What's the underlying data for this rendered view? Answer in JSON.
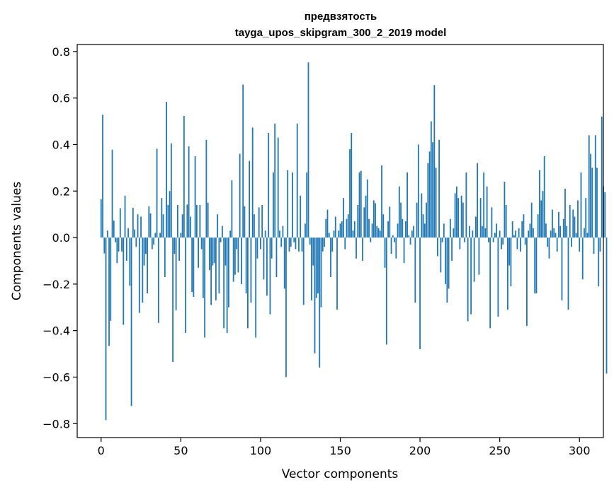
{
  "chart_data": {
    "type": "bar",
    "title": "предвзятость",
    "subtitle": "tayga_upos_skipgram_300_2_2019 model",
    "xlabel": "Vector components",
    "ylabel": "Components values",
    "xlim": [
      -15,
      315
    ],
    "ylim": [
      -0.86,
      0.83
    ],
    "xticks": [
      0,
      50,
      100,
      150,
      200,
      250,
      300
    ],
    "yticks": [
      -0.8,
      -0.6,
      -0.4,
      -0.2,
      0.0,
      0.2,
      0.4,
      0.6,
      0.8
    ],
    "ytick_labels": [
      "−0.8",
      "−0.6",
      "−0.4",
      "−0.2",
      "0.0",
      "0.2",
      "0.4",
      "0.6",
      "0.8"
    ],
    "grid": false,
    "bar_color": "#1f77b4",
    "values": [
      0.165,
      0.528,
      -0.068,
      -0.785,
      0.03,
      -0.466,
      -0.358,
      0.378,
      0.073,
      -0.02,
      -0.11,
      -0.06,
      0.126,
      -0.06,
      -0.375,
      0.18,
      -0.1,
      0.04,
      -0.207,
      -0.724,
      0.128,
      0.035,
      -0.04,
      0.1,
      -0.324,
      0.09,
      -0.28,
      -0.12,
      -0.07,
      -0.24,
      0.134,
      0.104,
      -0.05,
      -0.03,
      0.02,
      0.382,
      -0.367,
      0.02,
      0.17,
      0.1,
      -0.17,
      0.584,
      0.14,
      0.2,
      0.405,
      -0.535,
      -0.07,
      -0.312,
      0.14,
      -0.1,
      0.02,
      0.1,
      0.523,
      -0.41,
      0.142,
      0.392,
      0.09,
      -0.234,
      -0.255,
      0.35,
      0.14,
      -0.13,
      0.14,
      -0.05,
      -0.26,
      -0.43,
      0.42,
      0.15,
      -0.14,
      -0.29,
      -0.12,
      -0.11,
      -0.27,
      0.1,
      -0.24,
      -0.02,
      0.05,
      -0.39,
      -0.12,
      -0.41,
      -0.3,
      0.03,
      0.246,
      -0.19,
      -0.16,
      -0.05,
      -0.15,
      0.36,
      -0.2,
      0.658,
      0.135,
      -0.24,
      -0.39,
      0.33,
      -0.28,
      0.473,
      0.1,
      -0.43,
      -0.09,
      0.13,
      -0.05,
      0.14,
      -0.18,
      0.03,
      -0.25,
      0.45,
      -0.33,
      -0.09,
      0.28,
      0.49,
      -0.17,
      0.43,
      0.03,
      -0.04,
      0.05,
      -0.22,
      -0.6,
      0.29,
      -0.06,
      -0.04,
      0.28,
      -0.02,
      -0.05,
      0.49,
      -0.06,
      0.18,
      -0.06,
      -0.29,
      0.06,
      0.28,
      0.753,
      -0.03,
      -0.27,
      -0.12,
      -0.498,
      -0.26,
      -0.24,
      -0.559,
      -0.3,
      -0.06,
      -0.04,
      0.08,
      0.12,
      0.02,
      -0.17,
      -0.06,
      0.03,
      0.09,
      -0.31,
      0.03,
      0.06,
      0.07,
      0.17,
      -0.05,
      0.08,
      0.1,
      0.38,
      0.45,
      0.03,
      0.07,
      -0.09,
      0.14,
      0.28,
      0.287,
      -0.1,
      0.13,
      0.18,
      0.25,
      0.08,
      -0.02,
      0.06,
      0.16,
      0.148,
      0.05,
      0.04,
      0.03,
      0.31,
      0.1,
      -0.13,
      -0.46,
      0.07,
      0.133,
      -0.07,
      0.01,
      -0.02,
      -0.09,
      0.06,
      0.22,
      0.15,
      0.08,
      -0.11,
      0.07,
      0.28,
      0.01,
      -0.03,
      0.03,
      0.05,
      -0.28,
      0.15,
      0.4,
      -0.48,
      0.19,
      0.1,
      0.06,
      0.15,
      0.32,
      0.37,
      0.5,
      0.41,
      0.656,
      0.3,
      -0.08,
      0.42,
      -0.15,
      -0.02,
      0.06,
      -0.2,
      -0.28,
      -0.22,
      0.08,
      -0.1,
      0.04,
      0.19,
      0.22,
      0.17,
      -0.05,
      0.18,
      0.15,
      -0.02,
      0.28,
      -0.36,
      0.05,
      -0.33,
      0.03,
      -0.19,
      0.09,
      0.32,
      -0.16,
      0.17,
      0.05,
      0.28,
      0.04,
      0.22,
      -0.02,
      -0.39,
      0.13,
      -0.02,
      0.02,
      0.06,
      -0.34,
      0.03,
      -0.05,
      -0.03,
      0.24,
      0.14,
      -0.31,
      -0.12,
      -0.21,
      0.07,
      0.01,
      0.03,
      -0.05,
      0.04,
      -0.06,
      0.07,
      0.1,
      -0.03,
      -0.38,
      0.03,
      0.06,
      0.15,
      0.04,
      -0.24,
      -0.24,
      0.1,
      0.29,
      0.16,
      0.2,
      0.35,
      0.06,
      -0.04,
      -0.09,
      0.03,
      0.12,
      0.04,
      0.02,
      -0.06,
      0.11,
      0.05,
      -0.27,
      0.08,
      0.21,
      0.05,
      -0.31,
      0.14,
      -0.04,
      0.12,
      0.09,
      0.02,
      0.16,
      -0.06,
      0.28,
      -0.18,
      0.04,
      0.17,
      0.02,
      0.44,
      0.36,
      0.3,
      -0.07,
      0.44,
      0.3,
      -0.21,
      -0.06,
      0.52,
      0.22,
      0.195,
      -0.585
    ]
  }
}
